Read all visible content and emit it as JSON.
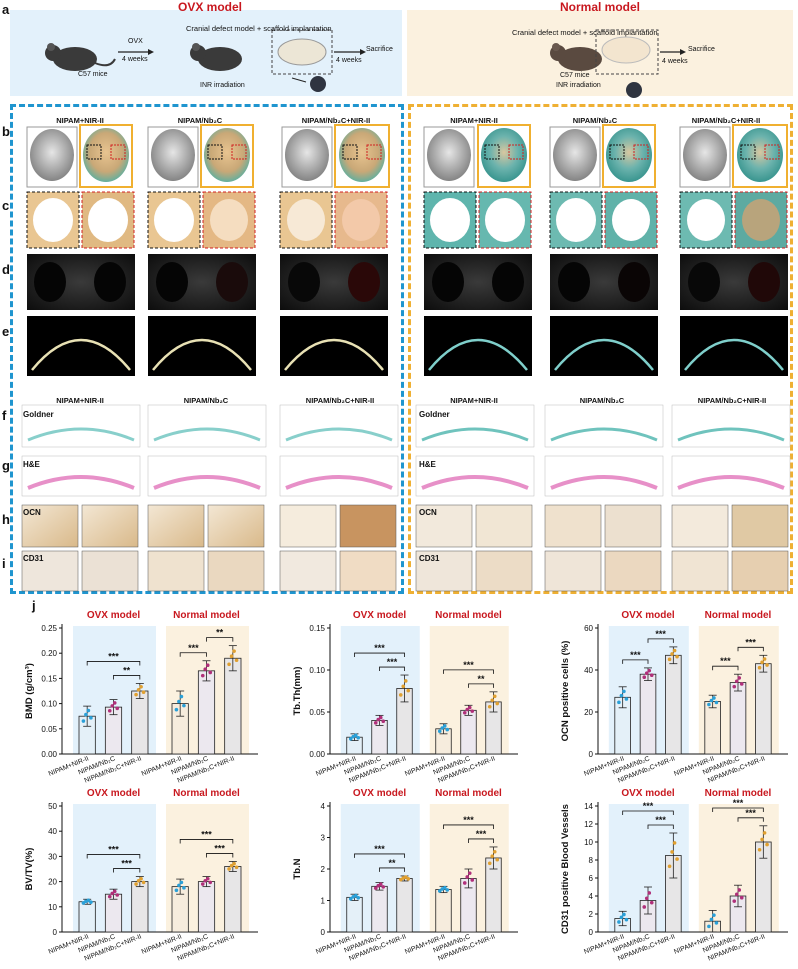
{
  "figure_label_a": "a",
  "headers": {
    "ovx": "OVX model",
    "normal": "Normal model"
  },
  "schematic": {
    "ovx_step1_label": "C57 mice",
    "ovx_step_label": "OVX",
    "ovx_step_weeks": "4 weeks",
    "ovx_implant": "Cranial defect model + scaffold implantation",
    "ovx_irradiation": "INR irradiation",
    "ovx_sacrifice": "Sacrifice",
    "ovx_weeks2": "4 weeks",
    "norm_implant": "Cranial defect model + scaffold implantation",
    "norm_mice": "C57 mice",
    "norm_irradiation": "INR irradiation",
    "norm_sacrifice": "Sacrifice",
    "norm_weeks": "4 weeks"
  },
  "row_labels": {
    "b": "b",
    "c": "c",
    "d": "d",
    "e": "e",
    "f": "f",
    "g": "g",
    "h": "h",
    "i": "i",
    "j": "j"
  },
  "group_titles": [
    "NIPAM+NIR-II",
    "NIPAM/Nb₂C",
    "NIPAM/Nb₂C+NIR-II"
  ],
  "stain_labels": {
    "goldner": "Goldner",
    "he": "H&E",
    "ocn": "OCN",
    "cd31": "CD31"
  },
  "colors": {
    "ovx_blue": "#1f95cf",
    "normal_gold": "#efb033",
    "title_red": "#c8181f",
    "ovx_bg": "#e3f1fb",
    "normal_bg": "#fbf1df"
  },
  "chart_data": [
    {
      "type": "bar",
      "ylabel": "BMD (g/cm³)",
      "ylim": [
        0,
        0.25
      ],
      "yticks": [
        "0.00",
        "0.05",
        "0.10",
        "0.15",
        "0.20",
        "0.25"
      ],
      "categories": [
        "NIPAM+NIR-II",
        "NIPAM/Nb₂C",
        "NIPAM/Nb₂C+NIR-II",
        "NIPAM+NIR-II",
        "NIPAM/Nb₂C",
        "NIPAM/Nb₂C+NIR-II"
      ],
      "group_labels": [
        "OVX model",
        "Normal model"
      ],
      "values": [
        0.075,
        0.093,
        0.125,
        0.1,
        0.165,
        0.19
      ],
      "errors": [
        0.02,
        0.015,
        0.015,
        0.025,
        0.02,
        0.025
      ],
      "sig": [
        [
          "***",
          0,
          2
        ],
        [
          "**",
          1,
          2
        ],
        [
          "***",
          3,
          4
        ],
        [
          "**",
          4,
          5
        ]
      ]
    },
    {
      "type": "bar",
      "ylabel": "Tb.Th(mm)",
      "ylim": [
        0,
        0.15
      ],
      "yticks": [
        "0.00",
        "0.05",
        "0.10",
        "0.15"
      ],
      "categories": [
        "NIPAM+NIR-II",
        "NIPAM/Nb₂C",
        "NIPAM/Nb₂C+NIR-II",
        "NIPAM+NIR-II",
        "NIPAM/Nb₂C",
        "NIPAM/Nb₂C+NIR-II"
      ],
      "group_labels": [
        "OVX model",
        "Normal model"
      ],
      "values": [
        0.02,
        0.04,
        0.078,
        0.03,
        0.052,
        0.062
      ],
      "errors": [
        0.004,
        0.006,
        0.016,
        0.006,
        0.006,
        0.012
      ],
      "sig": [
        [
          "***",
          0,
          2
        ],
        [
          "***",
          1,
          2
        ],
        [
          "***",
          3,
          5
        ],
        [
          "**",
          4,
          5
        ]
      ]
    },
    {
      "type": "bar",
      "ylabel": "OCN positive cells (%)",
      "ylim": [
        0,
        60
      ],
      "yticks": [
        "0",
        "20",
        "40",
        "60"
      ],
      "categories": [
        "NIPAM+NIR-II",
        "NIPAM/Nb₂C",
        "NIPAM/Nb₂C+NIR-II",
        "NIPAM+NIR-II",
        "NIPAM/Nb₂C",
        "NIPAM/Nb₂C+NIR-II"
      ],
      "group_labels": [
        "OVX model",
        "Normal model"
      ],
      "values": [
        27,
        38,
        47,
        25,
        34,
        43
      ],
      "errors": [
        5,
        3,
        4,
        3,
        4,
        4
      ],
      "sig": [
        [
          "***",
          0,
          1
        ],
        [
          "***",
          1,
          2
        ],
        [
          "***",
          3,
          4
        ],
        [
          "***",
          4,
          5
        ]
      ]
    },
    {
      "type": "bar",
      "ylabel": "BV/TV(%)",
      "ylim": [
        0,
        50
      ],
      "yticks": [
        "0",
        "10",
        "20",
        "30",
        "40",
        "50"
      ],
      "categories": [
        "NIPAM+NIR-II",
        "NIPAM/Nb₂C",
        "NIPAM/Nb₂C+NIR-II",
        "NIPAM+NIR-II",
        "NIPAM/Nb₂C",
        "NIPAM/Nb₂C+NIR-II"
      ],
      "group_labels": [
        "OVX model",
        "Normal model"
      ],
      "values": [
        12,
        15,
        20,
        18,
        20,
        26
      ],
      "errors": [
        1,
        2,
        2,
        3,
        2,
        2
      ],
      "sig": [
        [
          "***",
          0,
          2
        ],
        [
          "***",
          1,
          2
        ],
        [
          "***",
          3,
          5
        ],
        [
          "***",
          4,
          5
        ]
      ]
    },
    {
      "type": "bar",
      "ylabel": "Tb.N",
      "ylim": [
        0,
        4
      ],
      "yticks": [
        "0",
        "1",
        "2",
        "3",
        "4"
      ],
      "categories": [
        "NIPAM+NIR-II",
        "NIPAM/Nb₂C",
        "NIPAM/Nb₂C+NIR-II",
        "NIPAM+NIR-II",
        "NIPAM/Nb₂C",
        "NIPAM/Nb₂C+NIR-II"
      ],
      "group_labels": [
        "OVX model",
        "Normal model"
      ],
      "values": [
        1.1,
        1.45,
        1.7,
        1.35,
        1.7,
        2.35
      ],
      "errors": [
        0.1,
        0.12,
        0.08,
        0.1,
        0.3,
        0.35
      ],
      "sig": [
        [
          "***",
          0,
          2
        ],
        [
          "**",
          1,
          2
        ],
        [
          "***",
          3,
          5
        ],
        [
          "***",
          4,
          5
        ]
      ]
    },
    {
      "type": "bar",
      "ylabel": "CD31 positive Blood Vessels",
      "ylim": [
        0,
        14
      ],
      "yticks": [
        "0",
        "2",
        "4",
        "6",
        "8",
        "10",
        "12",
        "14"
      ],
      "categories": [
        "NIPAM+NIR-II",
        "NIPAM/Nb₂C",
        "NIPAM/Nb₂C+NIR-II",
        "NIPAM+NIR-II",
        "NIPAM/Nb₂C",
        "NIPAM/Nb₂C+NIR-II"
      ],
      "group_labels": [
        "OVX model",
        "Normal model"
      ],
      "values": [
        1.5,
        3.5,
        8.5,
        1.2,
        4,
        10
      ],
      "errors": [
        0.8,
        1.5,
        2.5,
        1.2,
        1.2,
        1.8
      ],
      "sig": [
        [
          "***",
          0,
          2
        ],
        [
          "***",
          1,
          2
        ],
        [
          "***",
          3,
          5
        ],
        [
          "***",
          4,
          5
        ]
      ]
    }
  ]
}
